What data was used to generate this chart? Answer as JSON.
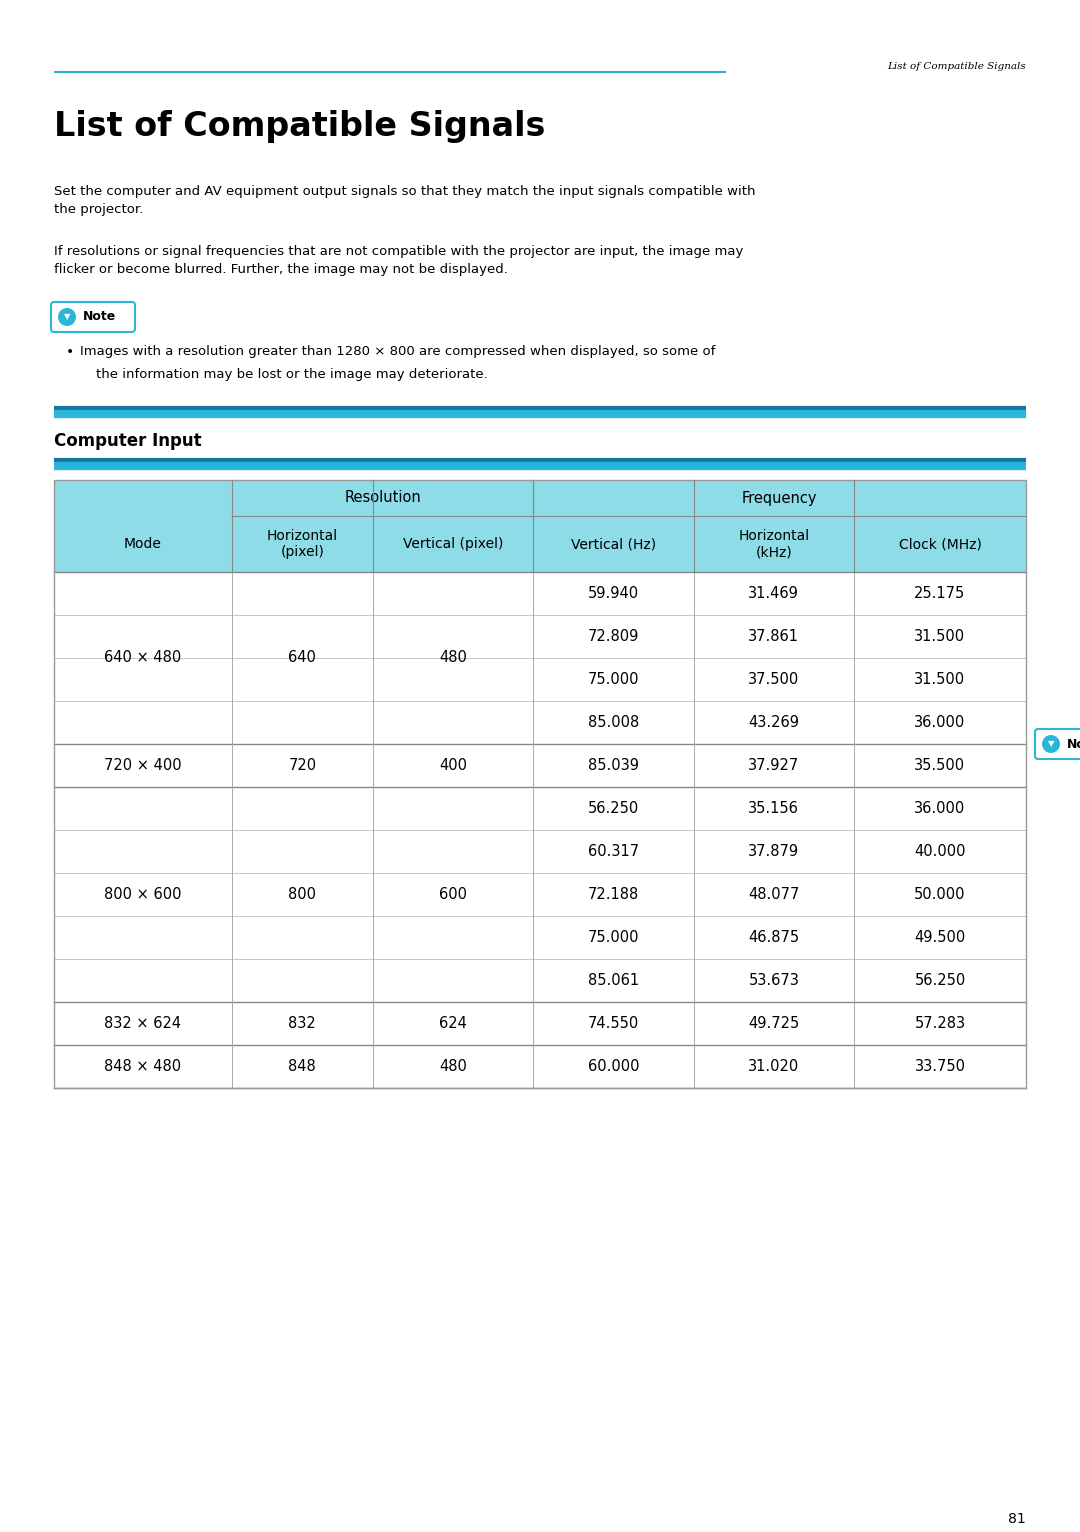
{
  "page_header": "List of Compatible Signals",
  "page_number": "81",
  "title": "List of Compatible Signals",
  "intro_text_1": "Set the computer and AV equipment output signals so that they match the input signals compatible with\nthe projector.",
  "intro_text_2": "If resolutions or signal frequencies that are not compatible with the projector are input, the image may\nflicker or become blurred. Further, the image may not be displayed.",
  "note_text_line1": "Images with a resolution greater than 1280 × 800 are compressed when displayed, so some of",
  "note_text_line2": "the information may be lost or the image may deteriorate.",
  "section_title": "Computer Input",
  "header_bg": "#8ddce8",
  "note_button_color": "#29b6d8",
  "line_color": "#29b6d8",
  "dark_line_color": "#1575a0",
  "col_headers_row2": [
    "Mode",
    "Horizontal\n(pixel)",
    "Vertical (pixel)",
    "Vertical (Hz)",
    "Horizontal\n(kHz)",
    "Clock (MHz)"
  ],
  "table_data": [
    [
      "640 × 480",
      "640",
      "480",
      "59.940",
      "31.469",
      "25.175"
    ],
    [
      "",
      "",
      "",
      "72.809",
      "37.861",
      "31.500"
    ],
    [
      "",
      "",
      "",
      "75.000",
      "37.500",
      "31.500"
    ],
    [
      "",
      "",
      "",
      "85.008",
      "43.269",
      "36.000"
    ],
    [
      "720 × 400",
      "720",
      "400",
      "85.039",
      "37.927",
      "35.500"
    ],
    [
      "800 × 600",
      "800",
      "600",
      "56.250",
      "35.156",
      "36.000"
    ],
    [
      "",
      "",
      "",
      "60.317",
      "37.879",
      "40.000"
    ],
    [
      "",
      "",
      "",
      "72.188",
      "48.077",
      "50.000"
    ],
    [
      "",
      "",
      "",
      "75.000",
      "46.875",
      "49.500"
    ],
    [
      "",
      "",
      "",
      "85.061",
      "53.673",
      "56.250"
    ],
    [
      "832 × 624",
      "832",
      "624",
      "74.550",
      "49.725",
      "57.283"
    ],
    [
      "848 × 480",
      "848",
      "480",
      "60.000",
      "31.020",
      "33.750"
    ]
  ],
  "merged_groups": [
    {
      "rows": [
        0,
        1,
        2,
        3
      ],
      "mode": "640 × 480",
      "h": "640",
      "v": "480"
    },
    {
      "rows": [
        5,
        6,
        7,
        8,
        9
      ],
      "mode": "800 × 600",
      "h": "800",
      "v": "600"
    }
  ]
}
